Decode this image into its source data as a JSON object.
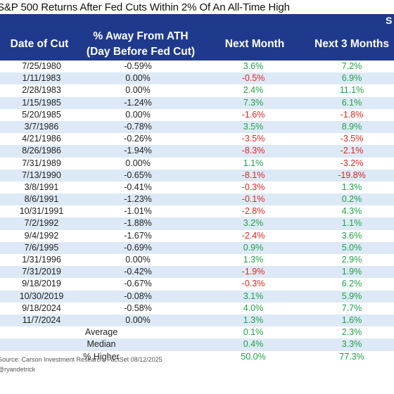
{
  "title": "S&P 500 Returns After Fed Cuts Within 2% Of An All-Time High",
  "header": {
    "super_label": "S",
    "col_date": "Date of Cut",
    "col_ath_line1": "% Away From ATH",
    "col_ath_line2": "(Day Before Fed Cut)",
    "col_m1": "Next Month",
    "col_m3": "Next 3 Months"
  },
  "rows": [
    {
      "date": "7/25/1980",
      "ath": "-0.59%",
      "m1": "3.6%",
      "m3": "7.2%"
    },
    {
      "date": "1/11/1983",
      "ath": "0.00%",
      "m1": "-0.5%",
      "m3": "6.9%"
    },
    {
      "date": "2/28/1983",
      "ath": "0.00%",
      "m1": "2.4%",
      "m3": "11.1%"
    },
    {
      "date": "1/15/1985",
      "ath": "-1.24%",
      "m1": "7.3%",
      "m3": "6.1%"
    },
    {
      "date": "5/20/1985",
      "ath": "0.00%",
      "m1": "-1.6%",
      "m3": "-1.8%"
    },
    {
      "date": "3/7/1986",
      "ath": "-0.78%",
      "m1": "3.5%",
      "m3": "8.9%"
    },
    {
      "date": "4/21/1986",
      "ath": "-0.26%",
      "m1": "-3.5%",
      "m3": "-3.5%"
    },
    {
      "date": "8/26/1986",
      "ath": "-1.94%",
      "m1": "-8.3%",
      "m3": "-2.1%"
    },
    {
      "date": "7/31/1989",
      "ath": "0.00%",
      "m1": "1.1%",
      "m3": "-3.2%"
    },
    {
      "date": "7/13/1990",
      "ath": "-0.65%",
      "m1": "-8.1%",
      "m3": "-19.8%"
    },
    {
      "date": "3/8/1991",
      "ath": "-0.41%",
      "m1": "-0.3%",
      "m3": "1.3%"
    },
    {
      "date": "8/6/1991",
      "ath": "-1.23%",
      "m1": "-0.1%",
      "m3": "0.2%"
    },
    {
      "date": "10/31/1991",
      "ath": "-1.01%",
      "m1": "-2.8%",
      "m3": "4.3%"
    },
    {
      "date": "7/2/1992",
      "ath": "-1.88%",
      "m1": "3.2%",
      "m3": "1.1%"
    },
    {
      "date": "9/4/1992",
      "ath": "-1.67%",
      "m1": "-2.4%",
      "m3": "3.6%"
    },
    {
      "date": "7/6/1995",
      "ath": "-0.69%",
      "m1": "0.9%",
      "m3": "5.0%"
    },
    {
      "date": "1/31/1996",
      "ath": "0.00%",
      "m1": "1.3%",
      "m3": "2.9%"
    },
    {
      "date": "7/31/2019",
      "ath": "-0.42%",
      "m1": "-1.9%",
      "m3": "1.9%"
    },
    {
      "date": "9/18/2019",
      "ath": "-0.67%",
      "m1": "-0.3%",
      "m3": "6.2%"
    },
    {
      "date": "10/30/2019",
      "ath": "-0.08%",
      "m1": "3.1%",
      "m3": "5.9%"
    },
    {
      "date": "9/18/2024",
      "ath": "-0.58%",
      "m1": "4.0%",
      "m3": "7.7%"
    },
    {
      "date": "11/7/2024",
      "ath": "0.00%",
      "m1": "1.3%",
      "m3": "1.6%"
    }
  ],
  "summary": [
    {
      "label": "Average",
      "m1": "0.1%",
      "m3": "2.3%"
    },
    {
      "label": "Median",
      "m1": "0.4%",
      "m3": "3.3%"
    },
    {
      "label": "% Higher",
      "m1": "50.0%",
      "m3": "77.3%"
    }
  ],
  "source": "Source: Carson Investment Research, FactSet 08/12/2025",
  "handle": "@ryandetrick",
  "colors": {
    "header_bg": "#1f3a8c",
    "row_alt": "#dde9f6",
    "positive": "#1fa047",
    "negative": "#e0261f"
  }
}
